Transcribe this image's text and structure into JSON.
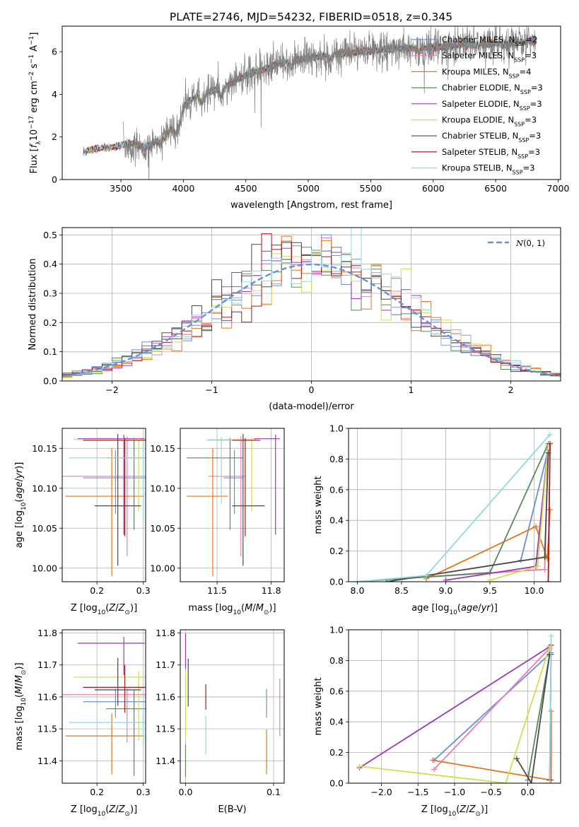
{
  "figure_title": "PLATE=2746, MJD=54232, FIBERID=0518, z=0.345",
  "colors": {
    "chabrier_miles": "#6a8fd8",
    "salpeter_miles": "#e77fb5",
    "kroupa_miles": "#e6751e",
    "chabrier_elodie": "#588a5a",
    "salpeter_elodie": "#9b38b8",
    "kroupa_elodie": "#cfe052",
    "chabrier_stelib": "#4a4a4a",
    "salpeter_stelib": "#a8191c",
    "kroupa_stelib": "#8fd9e0",
    "data": "#7f7f7f",
    "normal": "#6a8fd8"
  },
  "chart_data": [
    {
      "id": "spectrum",
      "type": "line",
      "title": "PLATE=2746, MJD=54232, FIBERID=0518, z=0.345",
      "xlabel": "wavelength [Angstrom, rest frame]",
      "ylabel_parts": [
        "Flux [",
        "f",
        "λ",
        "10",
        "−17",
        " erg cm",
        "−2",
        " s",
        "−1",
        " A",
        "−1",
        "]"
      ],
      "xlim": [
        3030,
        7020
      ],
      "ylim": [
        0,
        7.2
      ],
      "xticks": [
        3500,
        4000,
        4500,
        5000,
        5500,
        6000,
        6500,
        7000
      ],
      "yticks": [
        0,
        2,
        4,
        6
      ],
      "legend": {
        "position": "upper right",
        "entries": [
          {
            "pre": "Chabrier MILES, N",
            "sub": "SSP",
            "post": "=2",
            "color_key": "chabrier_miles"
          },
          {
            "pre": "Salpeter MILES, N",
            "sub": "SSP",
            "post": "=3",
            "color_key": "salpeter_miles"
          },
          {
            "pre": "Kroupa MILES, N",
            "sub": "SSP",
            "post": "=4",
            "color_key": "kroupa_miles"
          },
          {
            "pre": "Chabrier ELODIE, N",
            "sub": "SSP",
            "post": "=3",
            "color_key": "chabrier_elodie"
          },
          {
            "pre": "Salpeter ELODIE, N",
            "sub": "SSP",
            "post": "=3",
            "color_key": "salpeter_elodie"
          },
          {
            "pre": "Kroupa ELODIE, N",
            "sub": "SSP",
            "post": "=3",
            "color_key": "kroupa_elodie"
          },
          {
            "pre": "Chabrier STELIB, N",
            "sub": "SSP",
            "post": "=3",
            "color_key": "chabrier_stelib"
          },
          {
            "pre": "Salpeter STELIB, N",
            "sub": "SSP",
            "post": "=3",
            "color_key": "salpeter_stelib"
          },
          {
            "pre": "Kroupa STELIB, N",
            "sub": "SSP",
            "post": "=3",
            "color_key": "kroupa_stelib"
          }
        ]
      },
      "model_continuum": {
        "x": [
          3200,
          3300,
          3400,
          3500,
          3600,
          3700,
          3800,
          3900,
          4000,
          4100,
          4200,
          4300,
          4400,
          4500,
          4600,
          4700,
          4800,
          4900,
          5000,
          5100,
          5200,
          5300,
          5400,
          5500,
          5600,
          5700,
          5800,
          5900,
          6000,
          6100,
          6200,
          6300,
          6400,
          6500,
          6600,
          6700,
          6800
        ],
        "y": [
          1.3,
          1.45,
          1.5,
          1.6,
          1.7,
          1.8,
          2.1,
          2.8,
          3.5,
          3.9,
          4.1,
          4.3,
          4.6,
          4.9,
          5.1,
          5.3,
          5.5,
          5.6,
          5.7,
          5.8,
          5.9,
          5.95,
          6.0,
          6.05,
          6.1,
          6.15,
          6.15,
          6.2,
          6.2,
          6.25,
          6.3,
          6.3,
          6.35,
          6.4,
          6.4,
          6.45,
          6.5
        ]
      },
      "model_range": [
        3200,
        6830
      ],
      "data_range": [
        3520,
        6820
      ]
    },
    {
      "id": "residuals",
      "type": "line",
      "xlabel": "(data-model)/error",
      "ylabel": "Normed distribution",
      "xlim": [
        -2.5,
        2.5
      ],
      "ylim": [
        0,
        0.525
      ],
      "xticks": [
        -2,
        -1,
        0,
        1,
        2
      ],
      "yticks": [
        0.0,
        0.1,
        0.2,
        0.3,
        0.4,
        0.5
      ],
      "legend": {
        "position": "upper right",
        "label": "N(0, 1)"
      },
      "normal_curve": {
        "mean": 0,
        "sigma": 1
      },
      "hist_bin_width": 0.1,
      "hist_peak_note_values": [
        0.5,
        0.49,
        0.48
      ]
    },
    {
      "id": "age_vs_Z",
      "type": "scatter",
      "xlabel": "Z [log10(Z/Z⊙)]",
      "ylabel": "age [log10(age/yr)]",
      "xlim": [
        0.125,
        0.305
      ],
      "ylim": [
        9.983,
        10.175
      ],
      "xticks": [
        0.2,
        0.3
      ],
      "yticks": [
        10.0,
        10.05,
        10.1,
        10.15
      ],
      "points": [
        {
          "key": "chabrier_miles",
          "x": 0.24,
          "y": 10.113,
          "xerr": 0.07,
          "yerr": [
            0.045,
            0.035
          ]
        },
        {
          "key": "salpeter_miles",
          "x": 0.265,
          "y": 10.115,
          "xerr": [
            0.15,
            0.04
          ],
          "yerr": [
            0.1,
            0.05
          ]
        },
        {
          "key": "kroupa_miles",
          "x": 0.232,
          "y": 10.09,
          "xerr": [
            0.1,
            0.07
          ],
          "yerr": [
            0.1,
            0.06
          ]
        },
        {
          "key": "chabrier_elodie",
          "x": 0.28,
          "y": 10.138,
          "xerr": [
            0.06,
            0.04
          ],
          "yerr": [
            0.09,
            0.025
          ]
        },
        {
          "key": "salpeter_elodie",
          "x": 0.258,
          "y": 10.162,
          "xerr": [
            0.1,
            0.045
          ],
          "yerr": [
            0.12,
            0.005
          ]
        },
        {
          "key": "kroupa_elodie",
          "x": 0.29,
          "y": 10.161,
          "xerr": [
            0.14,
            0.015
          ],
          "yerr": [
            0.09,
            0.003
          ]
        },
        {
          "key": "chabrier_stelib",
          "x": 0.245,
          "y": 10.078,
          "xerr": [
            0.05,
            0.05
          ],
          "yerr": [
            0.075,
            0.09
          ]
        },
        {
          "key": "salpeter_stelib",
          "x": 0.26,
          "y": 10.16,
          "xerr": [
            0.09,
            0.045
          ],
          "yerr": [
            0.12,
            0.003
          ]
        },
        {
          "key": "kroupa_stelib",
          "x": 0.3,
          "y": 10.138,
          "xerr": [
            0.16,
            0.005
          ],
          "yerr": [
            0.08,
            0.02
          ]
        }
      ]
    },
    {
      "id": "age_vs_mass",
      "type": "scatter",
      "xlabel": "mass [log10(M/M⊙)]",
      "ylabel": "",
      "xlim": [
        11.33,
        11.81
      ],
      "ylim": [
        9.983,
        10.175
      ],
      "xticks": [
        11.5,
        11.75
      ],
      "yticks": [
        10.0,
        10.05,
        10.1,
        10.15
      ],
      "points": [
        {
          "key": "chabrier_miles",
          "x": 11.58,
          "y": 10.113,
          "xerr": [
            0.05,
            0.04
          ],
          "yerr": [
            0.045,
            0.035
          ]
        },
        {
          "key": "salpeter_miles",
          "x": 11.61,
          "y": 10.115,
          "xerr": [
            0.15,
            0.02
          ],
          "yerr": [
            0.1,
            0.05
          ]
        },
        {
          "key": "kroupa_miles",
          "x": 11.48,
          "y": 10.09,
          "xerr": [
            0.12,
            0.07
          ],
          "yerr": [
            0.1,
            0.06
          ]
        },
        {
          "key": "chabrier_elodie",
          "x": 11.56,
          "y": 10.138,
          "xerr": [
            0.2,
            0.06
          ],
          "yerr": [
            0.09,
            0.025
          ]
        },
        {
          "key": "salpeter_elodie",
          "x": 11.77,
          "y": 10.162,
          "xerr": [
            0.1,
            0.02
          ],
          "yerr": [
            0.12,
            0.005
          ]
        },
        {
          "key": "kroupa_elodie",
          "x": 11.66,
          "y": 10.161,
          "xerr": [
            0.2,
            0.02
          ],
          "yerr": [
            0.09,
            0.003
          ]
        },
        {
          "key": "chabrier_stelib",
          "x": 11.62,
          "y": 10.078,
          "xerr": [
            0.05,
            0.1
          ],
          "yerr": [
            0.075,
            0.09
          ]
        },
        {
          "key": "salpeter_stelib",
          "x": 11.63,
          "y": 10.16,
          "xerr": [
            0.08,
            0.07
          ],
          "yerr": [
            0.12,
            0.003
          ]
        },
        {
          "key": "kroupa_stelib",
          "x": 11.52,
          "y": 10.16,
          "xerr": [
            0.07,
            0.05
          ],
          "yerr": [
            0.08,
            0.004
          ]
        }
      ]
    },
    {
      "id": "weight_vs_age",
      "type": "line",
      "xlabel": "age [log10(age/yr)]",
      "ylabel": "mass weight",
      "xlim": [
        7.9,
        10.3
      ],
      "ylim": [
        0,
        1.0
      ],
      "xticks": [
        8.0,
        8.5,
        9.0,
        9.5,
        10.0
      ],
      "yticks": [
        0.0,
        0.2,
        0.4,
        0.6,
        0.8,
        1.0
      ],
      "series": [
        {
          "key": "chabrier_miles",
          "x": [
            9.85,
            10.16
          ],
          "y": [
            0.14,
            0.86
          ]
        },
        {
          "key": "salpeter_miles",
          "x": [
            8.78,
            10.12,
            10.16
          ],
          "y": [
            0.03,
            0.08,
            0.89
          ]
        },
        {
          "key": "kroupa_miles",
          "x": [
            8.78,
            10.02,
            10.15,
            10.18
          ],
          "y": [
            0.02,
            0.36,
            0.15,
            0.47
          ]
        },
        {
          "key": "chabrier_elodie",
          "x": [
            8.0,
            9.5,
            10.16
          ],
          "y": [
            0.0,
            0.06,
            0.9
          ]
        },
        {
          "key": "salpeter_elodie",
          "x": [
            9.0,
            10.02,
            10.16
          ],
          "y": [
            0.01,
            0.1,
            0.89
          ]
        },
        {
          "key": "kroupa_elodie",
          "x": [
            9.5,
            10.04,
            10.16
          ],
          "y": [
            0.01,
            0.1,
            0.89
          ]
        },
        {
          "key": "chabrier_stelib",
          "x": [
            8.33,
            10.12,
            10.16
          ],
          "y": [
            0.0,
            0.16,
            0.84
          ]
        },
        {
          "key": "salpeter_stelib",
          "x": [
            10.16,
            10.18
          ],
          "y": [
            0.0,
            0.9
          ]
        },
        {
          "key": "kroupa_stelib",
          "x": [
            8.0,
            8.78,
            10.18
          ],
          "y": [
            0.0,
            0.04,
            0.96
          ]
        }
      ]
    },
    {
      "id": "mass_vs_Z",
      "type": "scatter",
      "xlabel": "Z [log10(Z/Z⊙)]",
      "ylabel": "mass [log10(M/M⊙)]",
      "xlim": [
        0.125,
        0.305
      ],
      "ylim": [
        11.33,
        11.81
      ],
      "xticks": [
        0.2,
        0.3
      ],
      "yticks": [
        11.4,
        11.5,
        11.6,
        11.7,
        11.8
      ],
      "points": [
        {
          "key": "chabrier_miles",
          "x": 0.24,
          "y": 11.585,
          "xerr": 0.07,
          "yerr": [
            0.05,
            0.04
          ]
        },
        {
          "key": "salpeter_miles",
          "x": 0.265,
          "y": 11.607,
          "xerr": [
            0.15,
            0.04
          ],
          "yerr": [
            0.15,
            0.02
          ]
        },
        {
          "key": "kroupa_miles",
          "x": 0.232,
          "y": 11.478,
          "xerr": [
            0.1,
            0.07
          ],
          "yerr": [
            0.12,
            0.07
          ]
        },
        {
          "key": "chabrier_elodie",
          "x": 0.28,
          "y": 11.563,
          "xerr": [
            0.06,
            0.04
          ],
          "yerr": [
            0.21,
            0.06
          ]
        },
        {
          "key": "salpeter_elodie",
          "x": 0.258,
          "y": 11.768,
          "xerr": [
            0.1,
            0.045
          ],
          "yerr": [
            0.1,
            0.02
          ]
        },
        {
          "key": "kroupa_elodie",
          "x": 0.29,
          "y": 11.662,
          "xerr": [
            0.14,
            0.015
          ],
          "yerr": [
            0.2,
            0.02
          ]
        },
        {
          "key": "chabrier_stelib",
          "x": 0.245,
          "y": 11.622,
          "xerr": [
            0.05,
            0.05
          ],
          "yerr": [
            0.05,
            0.1
          ]
        },
        {
          "key": "salpeter_stelib",
          "x": 0.26,
          "y": 11.63,
          "xerr": [
            0.09,
            0.045
          ],
          "yerr": [
            0.08,
            0.07
          ]
        },
        {
          "key": "kroupa_stelib",
          "x": 0.3,
          "y": 11.52,
          "xerr": [
            0.16,
            0.005
          ],
          "yerr": [
            0.07,
            0.05
          ]
        }
      ]
    },
    {
      "id": "mass_vs_ebv",
      "type": "scatter",
      "xlabel": "E(B-V)",
      "ylabel": "",
      "xlim": [
        -0.006,
        0.112
      ],
      "ylim": [
        11.33,
        11.81
      ],
      "xticks": [
        0.0,
        0.1
      ],
      "yticks": [
        11.4,
        11.5,
        11.6,
        11.7,
        11.8
      ],
      "points": [
        {
          "key": "chabrier_miles",
          "x": 0.092,
          "y": 11.585,
          "yerr": [
            0.05,
            0.04
          ]
        },
        {
          "key": "salpeter_miles",
          "x": 0.107,
          "y": 11.607,
          "yerr": [
            0.13,
            0.05
          ]
        },
        {
          "key": "kroupa_miles",
          "x": 0.092,
          "y": 11.478,
          "yerr": [
            0.12,
            0.02
          ]
        },
        {
          "key": "chabrier_elodie",
          "x": 0.0,
          "y": 11.4,
          "yerr": [
            0.05,
            0.05
          ]
        },
        {
          "key": "salpeter_elodie",
          "x": 0.0,
          "y": 11.768,
          "yerr": [
            0.08,
            0.03
          ]
        },
        {
          "key": "kroupa_elodie",
          "x": 0.0,
          "y": 11.64,
          "yerr": [
            0.17,
            0.04
          ]
        },
        {
          "key": "chabrier_stelib",
          "x": 0.003,
          "y": 11.66,
          "yerr": [
            0.09,
            0.06
          ]
        },
        {
          "key": "salpeter_stelib",
          "x": 0.023,
          "y": 11.6,
          "yerr": [
            0.04,
            0.04
          ]
        },
        {
          "key": "kroupa_stelib",
          "x": 0.023,
          "y": 11.48,
          "yerr": [
            0.06,
            0.06
          ]
        }
      ]
    },
    {
      "id": "weight_vs_Z",
      "type": "line",
      "xlabel": "Z [log10(Z/Z⊙)]",
      "ylabel": "mass weight",
      "xlim": [
        -2.45,
        0.45
      ],
      "ylim": [
        0,
        1.0
      ],
      "xticks": [
        -2.0,
        -1.5,
        -1.0,
        -0.5,
        0.0
      ],
      "yticks": [
        0.0,
        0.2,
        0.4,
        0.6,
        0.8,
        1.0
      ],
      "series": [
        {
          "key": "chabrier_miles",
          "x": [
            -1.28,
            0.32
          ],
          "y": [
            0.15,
            0.85
          ]
        },
        {
          "key": "salpeter_miles",
          "x": [
            -1.28,
            0.3
          ],
          "y": [
            0.09,
            0.88
          ]
        },
        {
          "key": "kroupa_miles",
          "x": [
            -1.3,
            0.32,
            0.32
          ],
          "y": [
            0.15,
            0.02,
            0.47
          ]
        },
        {
          "key": "chabrier_elodie",
          "x": [
            0.0,
            0.3,
            0.32
          ],
          "y": [
            0.02,
            0.84,
            0.84
          ]
        },
        {
          "key": "salpeter_elodie",
          "x": [
            -2.3,
            0.3
          ],
          "y": [
            0.1,
            0.89
          ]
        },
        {
          "key": "kroupa_elodie",
          "x": [
            -2.3,
            -0.3,
            0.3
          ],
          "y": [
            0.11,
            0.0,
            0.89
          ]
        },
        {
          "key": "chabrier_stelib",
          "x": [
            -0.15,
            0.05,
            0.3
          ],
          "y": [
            0.16,
            0.0,
            0.84
          ]
        },
        {
          "key": "salpeter_stelib",
          "x": [
            0.3,
            0.32
          ],
          "y": [
            0.02,
            0.9
          ]
        },
        {
          "key": "kroupa_stelib",
          "x": [
            0.3,
            0.32
          ],
          "y": [
            0.0,
            0.96
          ]
        }
      ]
    }
  ]
}
